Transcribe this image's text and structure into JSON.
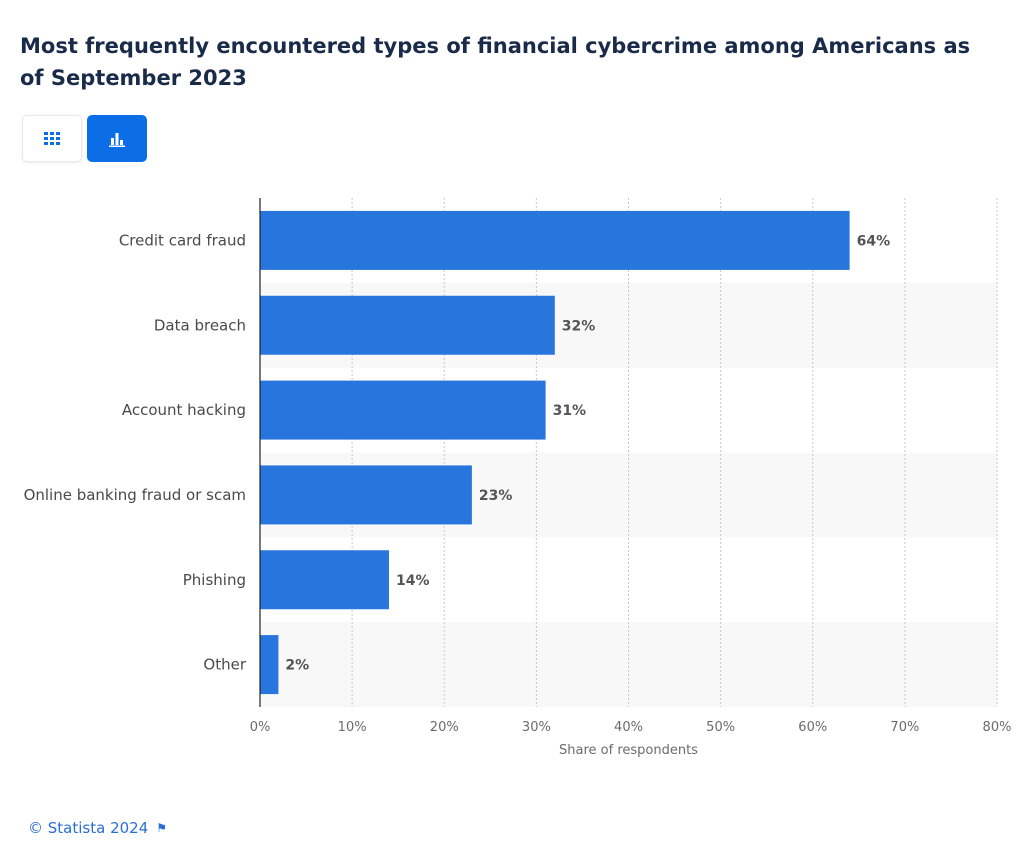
{
  "header": {
    "title": "Most frequently encountered types of financial cybercrime among Americans as of September 2023"
  },
  "view_toggle": {
    "table_icon": "table-grid-icon",
    "chart_icon": "bar-chart-icon",
    "selected": "chart"
  },
  "colors": {
    "bar": "#2876dd",
    "accent": "#0b6ee6",
    "title": "#1a2b49",
    "footer": "#2a6fd6"
  },
  "footer": {
    "copyright": "© Statista 2024",
    "flag_icon": "flag-icon"
  },
  "chart_data": {
    "type": "bar",
    "orientation": "horizontal",
    "title": "Most frequently encountered types of financial cybercrime among Americans as of September 2023",
    "categories": [
      "Credit card fraud",
      "Data breach",
      "Account hacking",
      "Online banking fraud or scam",
      "Phishing",
      "Other"
    ],
    "values": [
      64,
      32,
      31,
      23,
      14,
      2
    ],
    "data_labels": [
      "64%",
      "32%",
      "31%",
      "23%",
      "14%",
      "2%"
    ],
    "xlabel": "Share of respondents",
    "ylabel": "",
    "xlim": [
      0,
      80
    ],
    "x_ticks": [
      "0%",
      "10%",
      "20%",
      "30%",
      "40%",
      "50%",
      "60%",
      "70%",
      "80%"
    ],
    "grid": true
  }
}
